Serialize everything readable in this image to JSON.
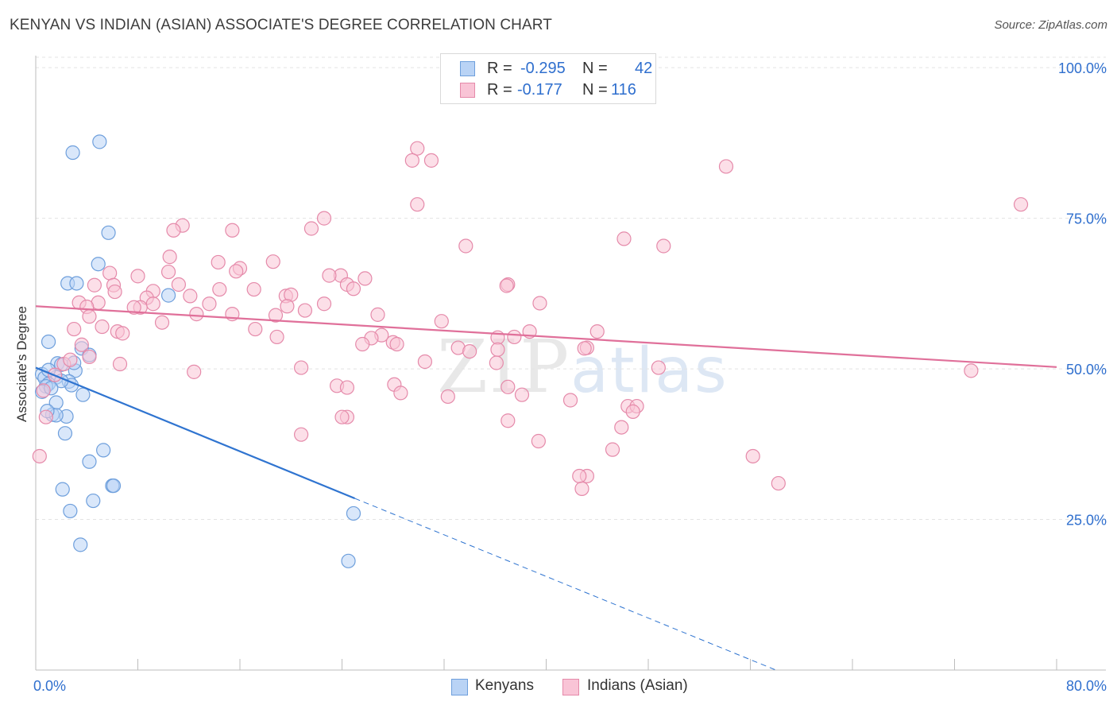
{
  "title": "KENYAN VS INDIAN (ASIAN) ASSOCIATE'S DEGREE CORRELATION CHART",
  "source": "Source: ZipAtlas.com",
  "watermark": {
    "zip": "ZIP",
    "atlas": "atlas"
  },
  "legend": {
    "r_label": "R =",
    "n_label": "N =",
    "kenyans": {
      "r": "-0.295",
      "n": "42"
    },
    "indians": {
      "r": "-0.177",
      "n": "116"
    }
  },
  "bottom_legend": {
    "kenyans": "Kenyans",
    "indians": "Indians (Asian)"
  },
  "colors": {
    "blue_fill": "#b9d3f5",
    "blue_stroke": "#6e9fdc",
    "blue_line": "#2f74d0",
    "pink_fill": "#f9c4d6",
    "pink_stroke": "#e58aaa",
    "pink_line": "#e0709a",
    "axis_text": "#2f6fce",
    "grid": "#e3e3e3"
  },
  "chart_data": {
    "type": "scatter",
    "title": "KENYAN VS INDIAN (ASIAN) ASSOCIATE'S DEGREE CORRELATION CHART",
    "xlabel": "",
    "ylabel": "Associate's Degree",
    "xlim": [
      0,
      80
    ],
    "ylim": [
      0,
      102
    ],
    "x_tick_labels": {
      "left": "0.0%",
      "right": "80.0%"
    },
    "y_ticks": [
      {
        "value": 100,
        "label": "100.0%"
      },
      {
        "value": 75,
        "label": "75.0%"
      },
      {
        "value": 50,
        "label": "50.0%"
      },
      {
        "value": 25,
        "label": "25.0%"
      }
    ],
    "series": [
      {
        "name": "Kenyans",
        "trend": {
          "x0": 0,
          "y0": 50.2,
          "x1": 25,
          "y1": 28.5,
          "dash_to_x": 58,
          "dash_to_y": 0
        },
        "points": [
          [
            5.0,
            87.7
          ],
          [
            2.9,
            85.9
          ],
          [
            5.7,
            72.6
          ],
          [
            4.9,
            67.4
          ],
          [
            2.5,
            64.2
          ],
          [
            3.2,
            64.2
          ],
          [
            10.4,
            62.2
          ],
          [
            1.0,
            54.5
          ],
          [
            3.6,
            53.4
          ],
          [
            4.2,
            52.3
          ],
          [
            1.7,
            50.9
          ],
          [
            2.0,
            50.7
          ],
          [
            3.1,
            49.7
          ],
          [
            0.5,
            49.1
          ],
          [
            1.6,
            48.6
          ],
          [
            0.7,
            48.5
          ],
          [
            2.6,
            47.9
          ],
          [
            1.0,
            47.5
          ],
          [
            2.8,
            47.3
          ],
          [
            0.8,
            47.1
          ],
          [
            0.5,
            46.2
          ],
          [
            1.6,
            44.4
          ],
          [
            3.7,
            45.7
          ],
          [
            2.4,
            42.1
          ],
          [
            1.3,
            42.4
          ],
          [
            1.6,
            42.3
          ],
          [
            2.3,
            39.3
          ],
          [
            5.3,
            36.5
          ],
          [
            4.2,
            34.6
          ],
          [
            6.0,
            30.6
          ],
          [
            6.1,
            30.6
          ],
          [
            2.1,
            30.0
          ],
          [
            4.5,
            28.1
          ],
          [
            2.7,
            26.4
          ],
          [
            24.9,
            26.0
          ],
          [
            3.5,
            20.8
          ],
          [
            24.5,
            18.1
          ],
          [
            1.0,
            49.8
          ],
          [
            2.0,
            48.0
          ],
          [
            1.2,
            46.8
          ],
          [
            0.9,
            43.0
          ],
          [
            3.0,
            51.0
          ]
        ]
      },
      {
        "name": "Indians (Asian)",
        "trend": {
          "x0": 0,
          "y0": 60.4,
          "x1": 80,
          "y1": 50.3
        },
        "points": [
          [
            29.9,
            86.6
          ],
          [
            29.5,
            84.6
          ],
          [
            31.0,
            84.6
          ],
          [
            54.1,
            83.6
          ],
          [
            77.2,
            77.3
          ],
          [
            29.9,
            77.3
          ],
          [
            22.6,
            75.0
          ],
          [
            11.5,
            73.8
          ],
          [
            10.8,
            73.0
          ],
          [
            15.4,
            73.0
          ],
          [
            21.6,
            73.3
          ],
          [
            46.1,
            71.6
          ],
          [
            33.7,
            70.4
          ],
          [
            49.2,
            70.4
          ],
          [
            10.5,
            68.6
          ],
          [
            14.3,
            67.7
          ],
          [
            18.6,
            67.8
          ],
          [
            16.0,
            66.7
          ],
          [
            15.7,
            66.2
          ],
          [
            10.4,
            66.1
          ],
          [
            5.8,
            65.9
          ],
          [
            8.0,
            65.4
          ],
          [
            23.9,
            65.5
          ],
          [
            23.0,
            65.5
          ],
          [
            25.8,
            65.0
          ],
          [
            6.1,
            63.9
          ],
          [
            4.6,
            63.9
          ],
          [
            11.2,
            64.0
          ],
          [
            37.0,
            64.0
          ],
          [
            24.4,
            64.0
          ],
          [
            36.9,
            63.8
          ],
          [
            24.9,
            63.3
          ],
          [
            14.4,
            63.2
          ],
          [
            17.1,
            63.2
          ],
          [
            9.2,
            62.9
          ],
          [
            6.2,
            62.8
          ],
          [
            12.1,
            62.1
          ],
          [
            19.6,
            62.1
          ],
          [
            8.7,
            61.8
          ],
          [
            20.0,
            62.3
          ],
          [
            3.4,
            61.0
          ],
          [
            4.9,
            61.0
          ],
          [
            13.6,
            60.8
          ],
          [
            9.2,
            60.8
          ],
          [
            22.6,
            60.8
          ],
          [
            39.5,
            60.9
          ],
          [
            8.2,
            60.2
          ],
          [
            4.0,
            60.3
          ],
          [
            7.7,
            60.2
          ],
          [
            19.7,
            60.4
          ],
          [
            21.1,
            59.7
          ],
          [
            12.6,
            59.1
          ],
          [
            15.4,
            59.1
          ],
          [
            26.8,
            59.0
          ],
          [
            18.8,
            58.9
          ],
          [
            4.2,
            58.7
          ],
          [
            31.8,
            57.9
          ],
          [
            9.9,
            57.7
          ],
          [
            17.2,
            56.6
          ],
          [
            3.0,
            56.6
          ],
          [
            5.2,
            57.0
          ],
          [
            6.4,
            56.2
          ],
          [
            6.8,
            55.9
          ],
          [
            27.1,
            55.6
          ],
          [
            38.7,
            56.2
          ],
          [
            44.0,
            56.2
          ],
          [
            18.9,
            55.3
          ],
          [
            26.3,
            55.1
          ],
          [
            37.5,
            55.3
          ],
          [
            36.2,
            55.2
          ],
          [
            28.0,
            54.4
          ],
          [
            25.6,
            54.1
          ],
          [
            28.3,
            54.1
          ],
          [
            33.1,
            53.5
          ],
          [
            43.2,
            53.5
          ],
          [
            43.0,
            53.4
          ],
          [
            36.2,
            53.2
          ],
          [
            34.0,
            52.9
          ],
          [
            30.5,
            51.2
          ],
          [
            36.1,
            51.0
          ],
          [
            48.8,
            50.2
          ],
          [
            4.2,
            52.0
          ],
          [
            6.6,
            50.8
          ],
          [
            20.8,
            50.2
          ],
          [
            73.3,
            49.7
          ],
          [
            12.4,
            49.5
          ],
          [
            37.0,
            47.0
          ],
          [
            23.6,
            47.2
          ],
          [
            24.4,
            46.9
          ],
          [
            28.1,
            47.4
          ],
          [
            28.6,
            46.0
          ],
          [
            32.3,
            45.4
          ],
          [
            38.1,
            45.7
          ],
          [
            41.9,
            44.8
          ],
          [
            46.4,
            43.8
          ],
          [
            47.1,
            43.8
          ],
          [
            46.8,
            42.9
          ],
          [
            24.4,
            42.0
          ],
          [
            24.0,
            42.0
          ],
          [
            37.0,
            41.4
          ],
          [
            45.9,
            40.3
          ],
          [
            20.8,
            39.1
          ],
          [
            39.4,
            38.0
          ],
          [
            45.2,
            36.6
          ],
          [
            56.2,
            35.5
          ],
          [
            43.2,
            32.2
          ],
          [
            42.6,
            32.2
          ],
          [
            58.2,
            31.0
          ],
          [
            2.2,
            50.8
          ],
          [
            0.8,
            42.0
          ],
          [
            0.3,
            35.5
          ],
          [
            0.6,
            46.4
          ],
          [
            1.5,
            49.0
          ],
          [
            2.7,
            51.5
          ],
          [
            3.6,
            54.0
          ],
          [
            42.8,
            30.1
          ]
        ]
      }
    ]
  }
}
